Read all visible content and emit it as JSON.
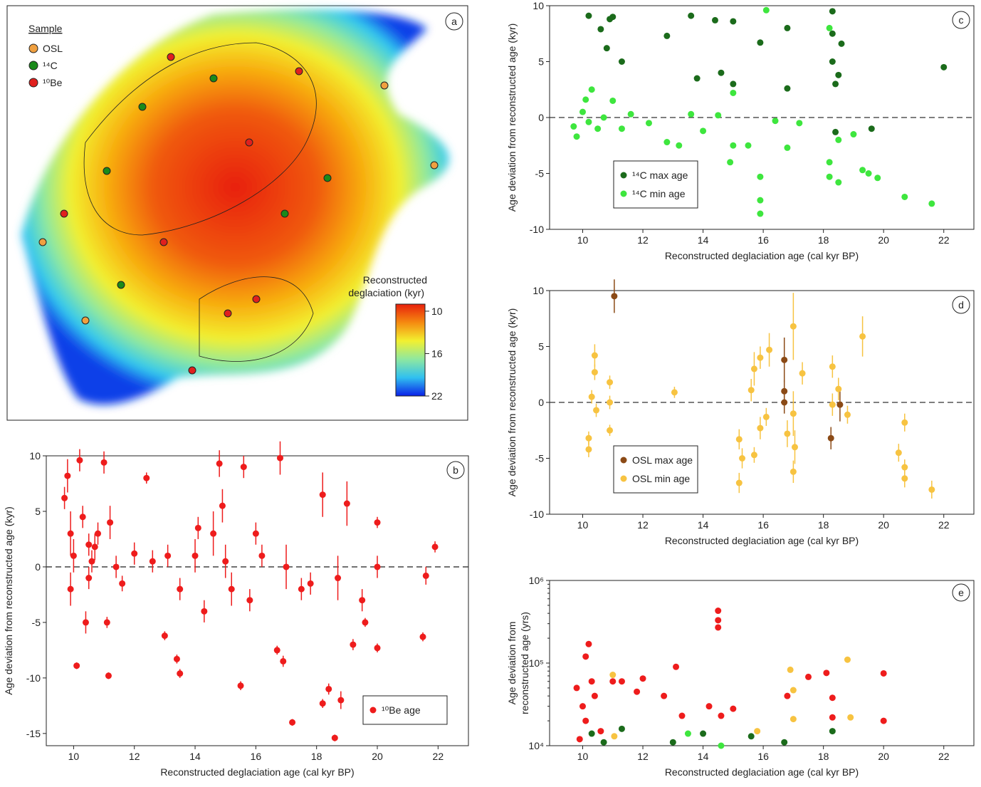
{
  "chart_data": [
    {
      "type": "map",
      "panel": "a",
      "legend_title": "Sample",
      "legend": [
        {
          "name": "OSL",
          "color": "#f0a040"
        },
        {
          "name": "¹⁴C",
          "color": "#1a8a1a"
        },
        {
          "name": "¹⁰Be",
          "color": "#e0201e"
        }
      ],
      "colorbar_title": [
        "Reconstructed",
        "deglaciation (kyr)"
      ],
      "colorbar_lim": [
        9,
        22
      ],
      "colorbar_ticks": [
        10,
        16,
        22
      ]
    },
    {
      "type": "scatter",
      "panel": "b",
      "x_label": "Reconstructed deglaciation age (cal kyr BP)",
      "y_label": "Age deviation from reconstructed age (kyr)",
      "xlim": [
        9.1,
        23
      ],
      "ylim": [
        -16.1,
        10
      ],
      "xticks": [
        10,
        12,
        14,
        16,
        18,
        20,
        22
      ],
      "yticks": [
        -15,
        -10,
        -5,
        0,
        5,
        10
      ],
      "zero_line": true,
      "legend": "lower right",
      "series": [
        {
          "name": "¹⁰Be age",
          "color": "#ee1c1c",
          "x": [
            9.7,
            9.8,
            9.9,
            10,
            10.1,
            10.2,
            10.3,
            10.4,
            10.5,
            10.6,
            10.8,
            11,
            11.1,
            11.15,
            11.4,
            11.6,
            12,
            12.4,
            12.6,
            13,
            13.1,
            13.4,
            13.5,
            13.5,
            14,
            14.3,
            14.6,
            14.8,
            14.9,
            15.2,
            15.5,
            15.6,
            15.8,
            16.2,
            16.8,
            16.7,
            16.9,
            17,
            17.2,
            17.5,
            18.2,
            18.2,
            18.4,
            18.6,
            18.8,
            18.7,
            19,
            19.2,
            19.6,
            20,
            20,
            20,
            21.5,
            21.6,
            21.9,
            10.5,
            9.9,
            10.7,
            11.2,
            14.1,
            15,
            16,
            17.8,
            19.5
          ],
          "values": [
            6.2,
            8.2,
            3,
            1,
            -8.9,
            9.6,
            4.5,
            -5,
            2,
            0.5,
            3,
            9.4,
            -5,
            -9.8,
            0,
            -1.5,
            1.2,
            8,
            0.5,
            -6.2,
            1,
            -8.3,
            -9.6,
            -2,
            1,
            -4,
            3,
            9.3,
            5.5,
            -2,
            -10.7,
            9,
            -3,
            1,
            9.8,
            -7.5,
            -8.5,
            0,
            -14,
            -2,
            6.5,
            -12.3,
            -11,
            -15.4,
            -12,
            -1,
            5.7,
            -7,
            -5,
            4,
            -7.3,
            0,
            -6.3,
            -0.8,
            1.8,
            -1,
            -2,
            1.8,
            4,
            3.5,
            0.5,
            3,
            -1.5,
            -3
          ],
          "errors": [
            1,
            1.5,
            2,
            1.5,
            0.3,
            1,
            1,
            1,
            1,
            1,
            1,
            1,
            0.5,
            0.3,
            1,
            0.7,
            1,
            0.5,
            1,
            0.4,
            1,
            0.4,
            0.4,
            1,
            1.5,
            1,
            2,
            1.2,
            1.5,
            1.5,
            0.4,
            1,
            1,
            1,
            1.5,
            0.4,
            0.5,
            2,
            0.3,
            1,
            2,
            0.4,
            0.5,
            0.3,
            0.8,
            2,
            2,
            0.5,
            0.4,
            0.5,
            0.4,
            1,
            0.4,
            0.8,
            0.5,
            1,
            1.5,
            1.2,
            1.5,
            1,
            1.5,
            1,
            1,
            1
          ]
        }
      ]
    },
    {
      "type": "scatter",
      "panel": "c",
      "x_label": "Reconstructed deglaciation age (cal kyr BP)",
      "y_label": "Age deviation from reconstructed age (kyr)",
      "xlim": [
        8.9,
        23
      ],
      "ylim": [
        -10,
        10
      ],
      "xticks": [
        10,
        12,
        14,
        16,
        18,
        20,
        22
      ],
      "yticks": [
        -10,
        -5,
        0,
        5,
        10
      ],
      "zero_line": true,
      "legend": "lower left",
      "series": [
        {
          "name": "¹⁴C max age",
          "color": "#1b6b1b",
          "x": [
            10.2,
            10.6,
            10.8,
            10.9,
            11,
            11.3,
            12.8,
            13.6,
            13.8,
            14.4,
            14.6,
            15,
            15,
            15.9,
            16.8,
            16.8,
            18.3,
            18.3,
            18.4,
            18.6,
            18.5,
            18.4,
            19.6,
            22,
            18.3
          ],
          "values": [
            9.1,
            7.9,
            6.2,
            8.8,
            9,
            5,
            7.3,
            9.1,
            3.5,
            8.7,
            4,
            8.6,
            3,
            6.7,
            8,
            2.6,
            9.5,
            5,
            3,
            6.6,
            3.8,
            -1.3,
            -1,
            4.5,
            7.5
          ]
        },
        {
          "name": "¹⁴C min age",
          "color": "#3ee63e",
          "x": [
            9.7,
            9.8,
            10,
            10.1,
            10.2,
            10.3,
            10.5,
            10.7,
            11,
            11.3,
            11.6,
            12.2,
            12.8,
            13.2,
            13.6,
            14,
            14.5,
            14.9,
            15,
            15,
            15.5,
            15.9,
            15.9,
            15.9,
            16.1,
            16.4,
            16.8,
            17.2,
            18.2,
            18.2,
            18.2,
            18.5,
            18.5,
            19,
            19.3,
            19.5,
            19.8,
            20.7,
            21.6
          ],
          "values": [
            -0.8,
            -1.7,
            0.5,
            1.6,
            -0.4,
            2.5,
            -1,
            0,
            1.5,
            -1,
            0.3,
            -0.5,
            -2.2,
            -2.5,
            0.3,
            -1.2,
            0.2,
            -4,
            2.2,
            -2.5,
            -2.5,
            -5.3,
            -8.6,
            -7.4,
            9.6,
            -0.3,
            -2.7,
            -0.5,
            -5.3,
            -4,
            8,
            -5.8,
            -2,
            -1.5,
            -4.7,
            -5,
            -5.4,
            -7.1,
            -7.7
          ]
        }
      ]
    },
    {
      "type": "scatter",
      "panel": "d",
      "x_label": "Reconstructed deglaciation age (cal kyr BP)",
      "y_label": "Age deviation from reconstructed age (kyr)",
      "xlim": [
        8.9,
        23
      ],
      "ylim": [
        -10,
        10
      ],
      "xticks": [
        10,
        12,
        14,
        16,
        18,
        20,
        22
      ],
      "yticks": [
        -10,
        -5,
        0,
        5,
        10
      ],
      "zero_line": true,
      "legend": "lower left",
      "series": [
        {
          "name": "OSL max age",
          "color": "#8b4a16",
          "x": [
            11.05,
            16.7,
            16.7,
            16.7,
            18.25,
            18.55
          ],
          "values": [
            9.5,
            3.8,
            0,
            1,
            -3.2,
            -0.2
          ],
          "errors": [
            1.5,
            2,
            1,
            1,
            1,
            1.5
          ]
        },
        {
          "name": "OSL min age",
          "color": "#f7c341",
          "x": [
            10.2,
            10.2,
            10.3,
            10.4,
            10.4,
            10.45,
            10.9,
            10.9,
            10.9,
            13.05,
            15.2,
            15.2,
            15.3,
            15.6,
            15.7,
            15.7,
            15.9,
            15.9,
            16.1,
            16.2,
            16.8,
            17,
            17,
            17,
            17.05,
            17.3,
            18.3,
            18.3,
            18.5,
            18.8,
            19.3,
            20.5,
            20.7,
            20.7,
            20.7,
            21.6
          ],
          "values": [
            -3.2,
            -4.2,
            0.5,
            4.2,
            2.7,
            -0.7,
            1.8,
            -2.5,
            0,
            0.9,
            -3.3,
            -7.2,
            -5,
            1.1,
            3,
            -4.7,
            4,
            -2.3,
            -1.3,
            4.7,
            -2.8,
            6.8,
            -6.2,
            -1,
            -4,
            2.6,
            3.2,
            -0.2,
            1.2,
            -1.1,
            5.9,
            -4.5,
            -1.8,
            -6.8,
            -5.8,
            -7.8
          ],
          "errors": [
            0.6,
            0.7,
            0.6,
            1,
            0.7,
            0.6,
            0.6,
            0.5,
            0.6,
            0.5,
            0.9,
            0.9,
            0.9,
            1,
            1.5,
            0.7,
            1,
            1,
            0.8,
            1.5,
            1.2,
            3,
            1,
            2,
            1.5,
            1,
            1,
            1,
            1,
            0.8,
            1.8,
            0.8,
            0.8,
            0.8,
            0.7,
            0.8
          ]
        }
      ]
    },
    {
      "type": "scatter",
      "panel": "e",
      "x_label": "Reconstructed deglaciation age (cal kyr BP)",
      "y_label": [
        "Age deviation from",
        "reconstructed age (yrs)"
      ],
      "xlim": [
        8.9,
        23
      ],
      "ylim": [
        10000,
        1000000
      ],
      "log_y": true,
      "xticks": [
        10,
        12,
        14,
        16,
        18,
        20,
        22
      ],
      "yticks": [
        {
          "value": 10000,
          "label": "10⁴"
        },
        {
          "value": 100000,
          "label": "10⁵"
        },
        {
          "value": 1000000,
          "label": "10⁶"
        }
      ],
      "series": [
        {
          "color": "#ee1c1c",
          "x": [
            9.8,
            10,
            10.1,
            10.2,
            10.3,
            10.1,
            9.9,
            10.4,
            10.6,
            11,
            11.3,
            11.8,
            12,
            13.1,
            13.3,
            14.2,
            14.5,
            14.5,
            14.5,
            14.6,
            15,
            16.8,
            17.5,
            18.1,
            18.3,
            18.3,
            20,
            20,
            12.7
          ],
          "values": [
            50000,
            30000,
            120000,
            170000,
            60000,
            20000,
            12000,
            40000,
            15000,
            60000,
            60000,
            45000,
            65000,
            90000,
            23000,
            30000,
            430000,
            330000,
            270000,
            23000,
            28000,
            40000,
            68000,
            76000,
            38000,
            22000,
            75000,
            20000,
            40000
          ]
        },
        {
          "color": "#1b6b1b",
          "x": [
            10.3,
            10.7,
            11.3,
            13,
            14,
            15.6,
            16.7,
            18.3
          ],
          "values": [
            14000,
            11000,
            16000,
            11000,
            14000,
            13000,
            11000,
            15000
          ]
        },
        {
          "color": "#3ee63e",
          "x": [
            13.5,
            14.6
          ],
          "values": [
            14000,
            10000
          ]
        },
        {
          "color": "#f7c341",
          "x": [
            11,
            11.05,
            15.8,
            16.9,
            17,
            17,
            18.8,
            18.9
          ],
          "values": [
            72000,
            13000,
            15000,
            83000,
            47000,
            21000,
            110000,
            22000
          ]
        }
      ]
    }
  ]
}
